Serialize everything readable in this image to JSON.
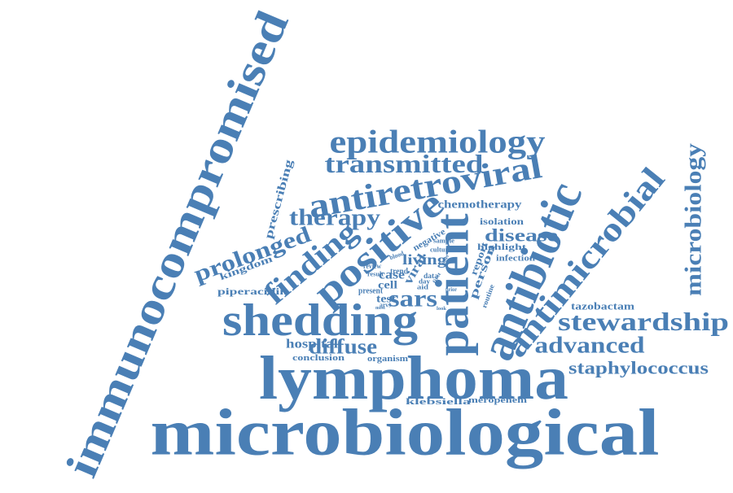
{
  "color": "#4a7fb5",
  "words": [
    {
      "text": "immunocompromised"
    },
    {
      "text": "microbiological"
    },
    {
      "text": "lymphoma"
    },
    {
      "text": "shedding"
    },
    {
      "text": "antibiotic"
    },
    {
      "text": "antimicrobial"
    },
    {
      "text": "patient"
    },
    {
      "text": "positive"
    },
    {
      "text": "epidemiology"
    },
    {
      "text": "antiretroviral"
    },
    {
      "text": "transmitted"
    },
    {
      "text": "microbiology"
    },
    {
      "text": "stewardship"
    },
    {
      "text": "advanced"
    },
    {
      "text": "staphylococcus"
    },
    {
      "text": "finding"
    },
    {
      "text": "prolonged"
    },
    {
      "text": "therapy"
    },
    {
      "text": "diffuse"
    },
    {
      "text": "sars"
    },
    {
      "text": "disease"
    },
    {
      "text": "chemotherapy"
    },
    {
      "text": "prescribing"
    },
    {
      "text": "person"
    },
    {
      "text": "hospital"
    },
    {
      "text": "kingdom"
    },
    {
      "text": "piperacillin"
    },
    {
      "text": "tazobactam"
    },
    {
      "text": "conclusion"
    },
    {
      "text": "organism"
    },
    {
      "text": "klebsiella"
    },
    {
      "text": "meropenem"
    },
    {
      "text": "isolation"
    },
    {
      "text": "highlight"
    },
    {
      "text": "infection"
    },
    {
      "text": "living"
    },
    {
      "text": "negative"
    },
    {
      "text": "viral"
    },
    {
      "text": "case"
    },
    {
      "text": "test"
    },
    {
      "text": "cell"
    },
    {
      "text": "present"
    },
    {
      "text": "report"
    },
    {
      "text": "sample"
    },
    {
      "text": "culture"
    },
    {
      "text": "routine"
    },
    {
      "text": "trend"
    },
    {
      "text": "review"
    },
    {
      "text": "result"
    },
    {
      "text": "blood"
    },
    {
      "text": "data"
    },
    {
      "text": "day"
    },
    {
      "text": "aid"
    },
    {
      "text": "arvs"
    },
    {
      "text": "prior"
    },
    {
      "text": "year"
    },
    {
      "text": "look"
    },
    {
      "text": "most"
    },
    {
      "text": "onset"
    },
    {
      "text": "first"
    }
  ]
}
